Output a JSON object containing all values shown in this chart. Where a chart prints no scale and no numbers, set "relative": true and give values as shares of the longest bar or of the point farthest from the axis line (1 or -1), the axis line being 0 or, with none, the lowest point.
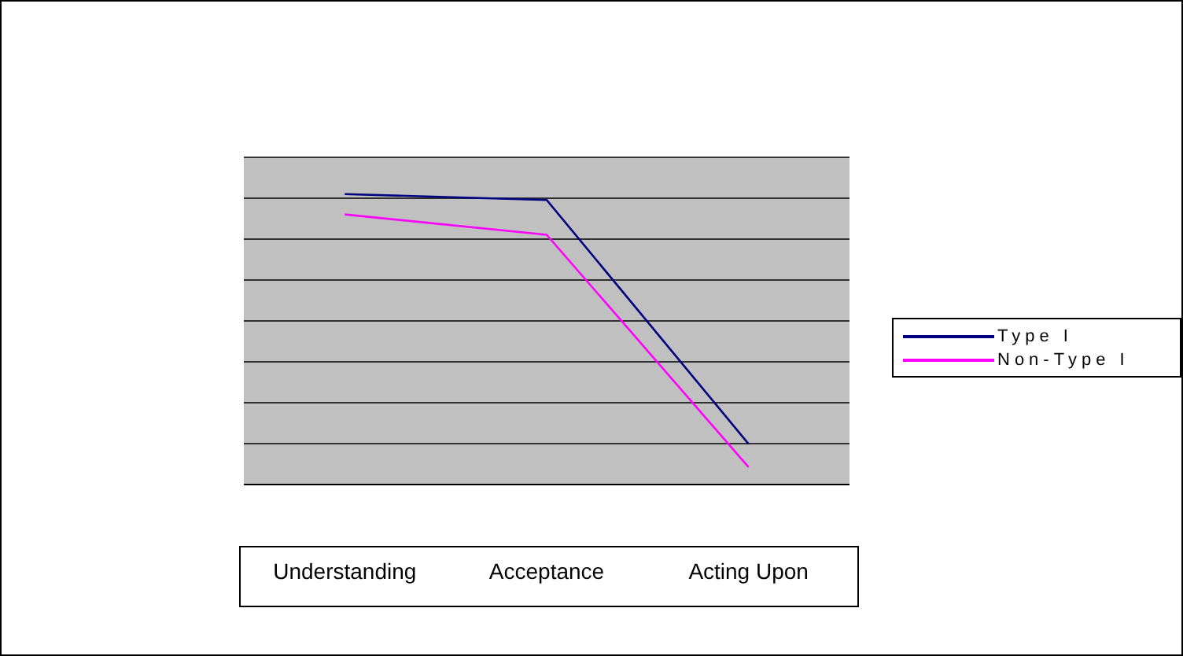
{
  "chart_data": {
    "type": "line",
    "relative": true,
    "categories": [
      "Understanding",
      "Acceptance",
      "Acting Upon"
    ],
    "series": [
      {
        "name": "Type I",
        "color": "#000080",
        "values": [
          1,
          0.98,
          0.14
        ]
      },
      {
        "name": "Non-Type I",
        "color": "#ff00ff",
        "values": [
          0.93,
          0.86,
          0.06
        ]
      }
    ],
    "grid": "y",
    "legend": "right",
    "marker": "none",
    "line_style": "solid"
  }
}
